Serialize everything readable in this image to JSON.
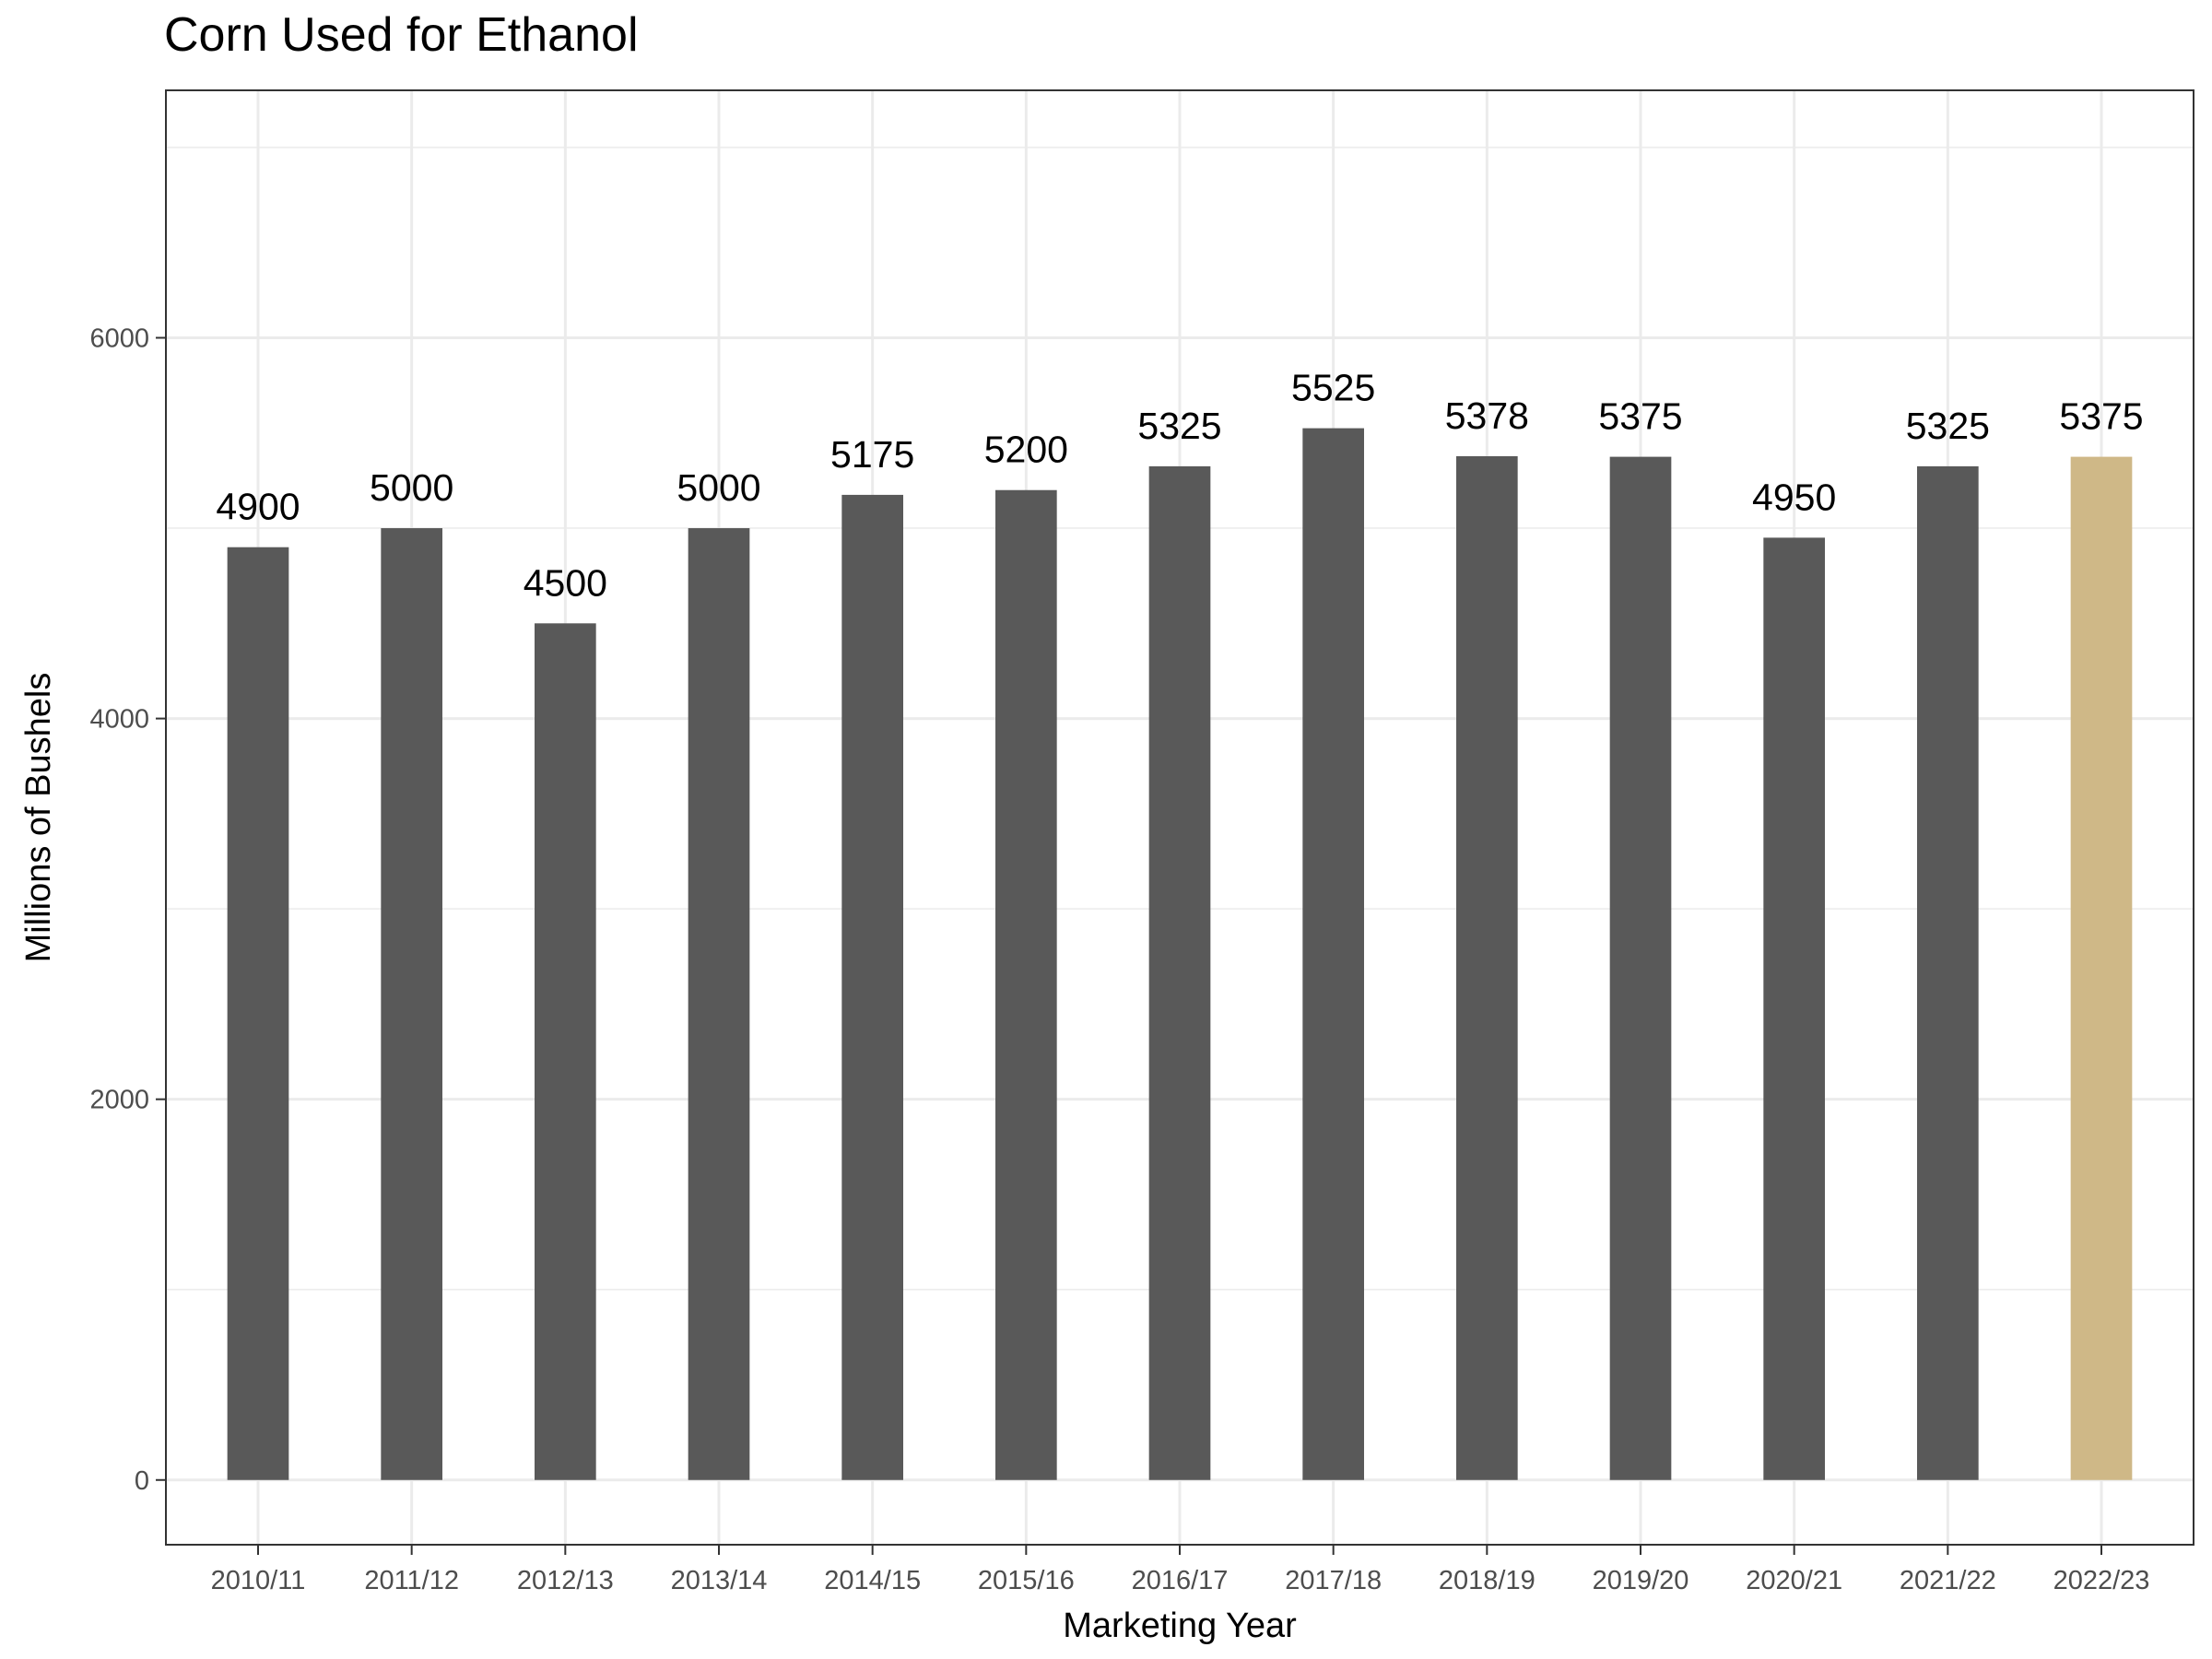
{
  "chart_data": {
    "type": "bar",
    "title": "Corn Used for Ethanol",
    "xlabel": "Marketing Year",
    "ylabel": "Millions of Bushels",
    "categories": [
      "2010/11",
      "2011/12",
      "2012/13",
      "2013/14",
      "2014/15",
      "2015/16",
      "2016/17",
      "2017/18",
      "2018/19",
      "2019/20",
      "2020/21",
      "2021/22",
      "2022/23"
    ],
    "values": [
      4900,
      5000,
      4500,
      5000,
      5175,
      5200,
      5325,
      5525,
      5378,
      5375,
      4950,
      5325,
      5375
    ],
    "data_labels": [
      "4900",
      "5000",
      "4500",
      "5000",
      "5175",
      "5200",
      "5325",
      "5525",
      "5378",
      "5375",
      "4950",
      "5325",
      "5375"
    ],
    "y_ticks": [
      0,
      2000,
      4000,
      6000
    ],
    "y_tick_labels": [
      "0",
      "2000",
      "4000",
      "6000"
    ],
    "ylim": [
      -340,
      7300
    ],
    "grid": true,
    "bar_color": "#595959",
    "highlight_color": "#CFB887",
    "highlight_index": 12,
    "grid_color": "#EBEBEB",
    "panel_border_color": "#333333"
  }
}
